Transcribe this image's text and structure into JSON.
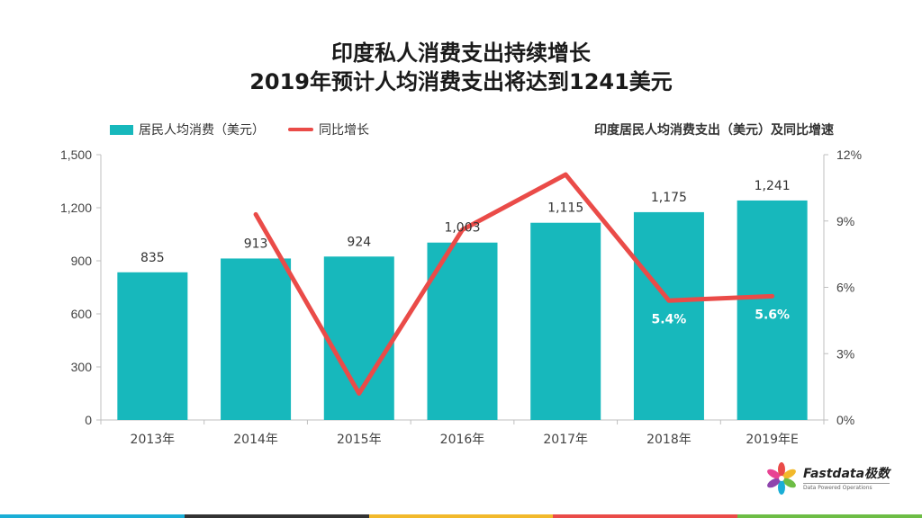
{
  "title": {
    "line1": "印度私人消费支出持续增长",
    "line2": "2019年预计人均消费支出将达到1241美元"
  },
  "legend": {
    "bar_label": "居民人均消费（美元）",
    "line_label": "同比增长"
  },
  "chart_caption": "印度居民人均消费支出（美元）及同比增速",
  "colors": {
    "bar": "#17b8bc",
    "line": "#ea4b48",
    "axis_text": "#444444",
    "footer": [
      "#1aaed6",
      "#333333",
      "#f2b92b",
      "#ea4b48",
      "#6dbd45"
    ]
  },
  "chart_data": {
    "type": "bar",
    "categories": [
      "2013年",
      "2014年",
      "2015年",
      "2016年",
      "2017年",
      "2018年",
      "2019年E"
    ],
    "series": [
      {
        "name": "居民人均消费（美元）",
        "type": "bar",
        "axis": "left",
        "values": [
          835,
          913,
          924,
          1003,
          1115,
          1175,
          1241
        ],
        "labels": [
          "835",
          "913",
          "924",
          "1,003",
          "1,115",
          "1,175",
          "1,241"
        ]
      },
      {
        "name": "同比增长",
        "type": "line",
        "axis": "right",
        "values": [
          null,
          9.3,
          1.2,
          8.6,
          11.1,
          5.4,
          5.6
        ],
        "labels": [
          "",
          "",
          "",
          "",
          "",
          "5.4%",
          "5.6%"
        ]
      }
    ],
    "y_left": {
      "min": 0,
      "max": 1500,
      "ticks": [
        0,
        300,
        600,
        900,
        1200,
        1500
      ],
      "tick_labels": [
        "0",
        "300",
        "600",
        "900",
        "1,200",
        "1,500"
      ]
    },
    "y_right": {
      "min": 0,
      "max": 12,
      "ticks": [
        0,
        3,
        6,
        9,
        12
      ],
      "tick_labels": [
        "0%",
        "3%",
        "6%",
        "9%",
        "12%"
      ]
    },
    "grid": false,
    "legend_position": "top-left"
  },
  "logo": {
    "name": "Fastdata极数",
    "tagline": "Data Powered Operations"
  }
}
